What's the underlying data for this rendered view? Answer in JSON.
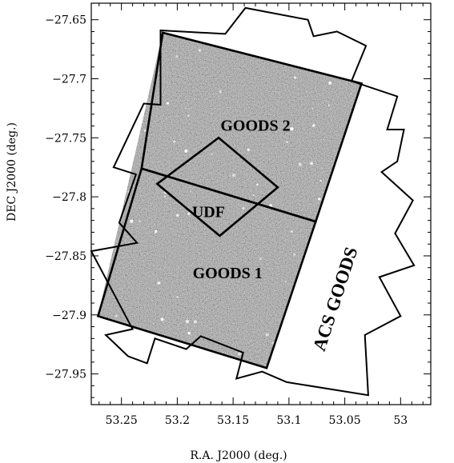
{
  "chart_data": {
    "type": "scatter",
    "title": "",
    "xlabel": "R.A. J2000 (deg.)",
    "ylabel": "DEC J2000 (deg.)",
    "xlim": [
      53.277,
      52.973
    ],
    "ylim": [
      -27.976,
      -27.636
    ],
    "x_reversed": true,
    "x_ticks": [
      53.25,
      53.2,
      53.15,
      53.1,
      53.05,
      53.0
    ],
    "x_tick_labels": [
      "53.25",
      "53.2",
      "53.15",
      "53.1",
      "53.05",
      "53"
    ],
    "y_ticks": [
      -27.65,
      -27.7,
      -27.75,
      -27.8,
      -27.85,
      -27.9,
      -27.95
    ],
    "y_tick_labels": [
      "−27.65",
      "−27.7",
      "−27.75",
      "−27.8",
      "−27.85",
      "−27.9",
      "−27.95"
    ],
    "image_field": {
      "description": "grayscale deep-field image",
      "corners": [
        [
          53.213,
          -27.661
        ],
        [
          53.035,
          -27.704
        ],
        [
          53.12,
          -27.945
        ],
        [
          53.271,
          -27.901
        ]
      ],
      "background": "#7a7a7a"
    },
    "regions": [
      {
        "label": "GOODS 2",
        "vertices": [
          [
            53.213,
            -27.661
          ],
          [
            53.035,
            -27.704
          ],
          [
            53.076,
            -27.821
          ],
          [
            53.232,
            -27.776
          ]
        ]
      },
      {
        "label": "GOODS 1",
        "vertices": [
          [
            53.232,
            -27.776
          ],
          [
            53.076,
            -27.821
          ],
          [
            53.12,
            -27.945
          ],
          [
            53.271,
            -27.901
          ]
        ]
      },
      {
        "label": "UDF",
        "vertices": [
          [
            53.163,
            -27.75
          ],
          [
            53.11,
            -27.792
          ],
          [
            53.162,
            -27.833
          ],
          [
            53.218,
            -27.789
          ]
        ]
      },
      {
        "label": "ACS GOODS",
        "vertices": [
          [
            53.215,
            -27.659
          ],
          [
            53.157,
            -27.662
          ],
          [
            53.139,
            -27.64
          ],
          [
            53.083,
            -27.65
          ],
          [
            53.078,
            -27.664
          ],
          [
            53.057,
            -27.66
          ],
          [
            53.031,
            -27.672
          ],
          [
            53.044,
            -27.702
          ],
          [
            53.003,
            -27.715
          ],
          [
            53.012,
            -27.743
          ],
          [
            52.997,
            -27.743
          ],
          [
            53.003,
            -27.77
          ],
          [
            53.017,
            -27.779
          ],
          [
            52.989,
            -27.803
          ],
          [
            53.005,
            -27.831
          ],
          [
            52.988,
            -27.858
          ],
          [
            53.019,
            -27.868
          ],
          [
            53.0,
            -27.901
          ],
          [
            53.032,
            -27.917
          ],
          [
            53.029,
            -27.968
          ],
          [
            53.102,
            -27.957
          ],
          [
            53.124,
            -27.948
          ],
          [
            53.147,
            -27.954
          ],
          [
            53.141,
            -27.932
          ],
          [
            53.179,
            -27.918
          ],
          [
            53.192,
            -27.929
          ],
          [
            53.22,
            -27.92
          ],
          [
            53.227,
            -27.941
          ],
          [
            53.244,
            -27.935
          ],
          [
            53.264,
            -27.917
          ],
          [
            53.24,
            -27.912
          ],
          [
            53.277,
            -27.846
          ],
          [
            53.236,
            -27.839
          ],
          [
            53.252,
            -27.822
          ],
          [
            53.237,
            -27.781
          ],
          [
            53.257,
            -27.775
          ],
          [
            53.23,
            -27.721
          ],
          [
            53.215,
            -27.722
          ],
          [
            53.215,
            -27.659
          ]
        ]
      }
    ],
    "annotations": [
      {
        "text": "GOODS 2",
        "x": 53.13,
        "y": -27.741
      },
      {
        "text": "UDF",
        "x": 53.172,
        "y": -27.814
      },
      {
        "text": "GOODS 1",
        "x": 53.155,
        "y": -27.866
      },
      {
        "text": "ACS GOODS",
        "x": 53.057,
        "y": -27.887,
        "rotation_deg": -72
      }
    ],
    "grid": false,
    "legend": null
  }
}
